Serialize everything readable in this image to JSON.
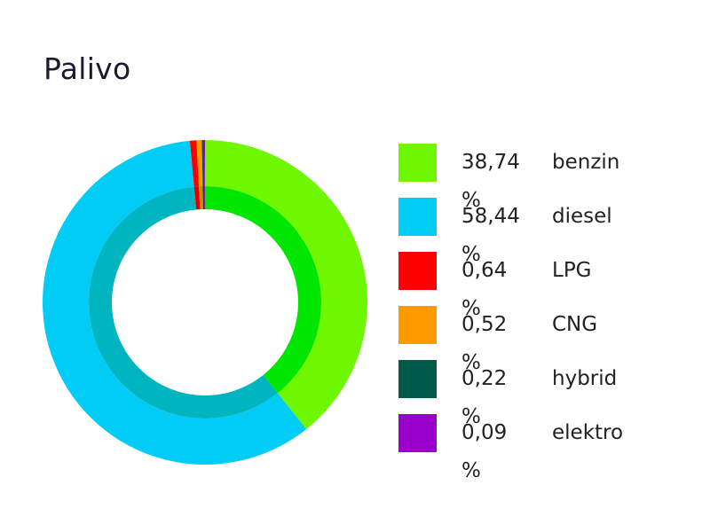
{
  "chart_data": {
    "type": "pie",
    "title": "Palivo",
    "donut": true,
    "legend_position": "right",
    "series": [
      {
        "name": "benzin",
        "value": 38.74,
        "label": "38,74 %",
        "color": "#6ff700",
        "inner_color": "#00e600"
      },
      {
        "name": "diesel",
        "value": 58.44,
        "label": "58,44 %",
        "color": "#00ccf5",
        "inner_color": "#00b4c0"
      },
      {
        "name": "LPG",
        "value": 0.64,
        "label": "0,64 %",
        "color": "#ff0000",
        "inner_color": "#e00000"
      },
      {
        "name": "CNG",
        "value": 0.52,
        "label": "0,52 %",
        "color": "#ff9900",
        "inner_color": "#d98400"
      },
      {
        "name": "hybrid",
        "value": 0.22,
        "label": "0,22 %",
        "color": "#005a4a",
        "inner_color": "#004a3c"
      },
      {
        "name": "elektro",
        "value": 0.09,
        "label": "0,09 %",
        "color": "#9900cc",
        "inner_color": "#7a00a8"
      }
    ]
  }
}
